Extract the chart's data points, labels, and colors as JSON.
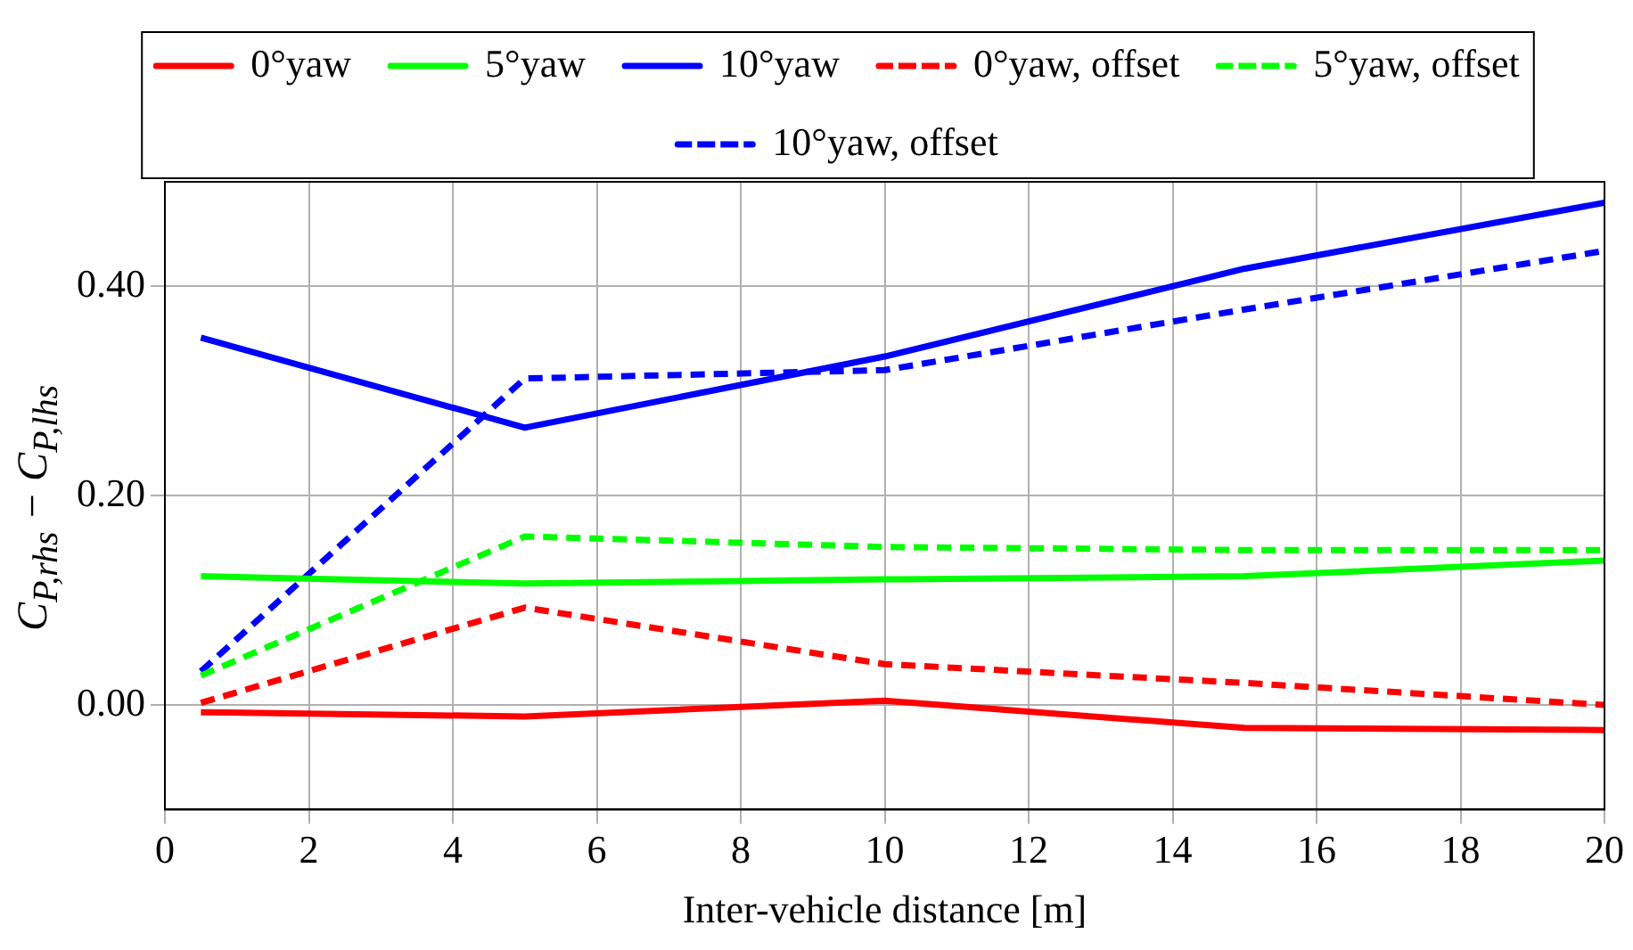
{
  "chart_data": {
    "type": "line",
    "xlabel": "Inter-vehicle distance [m]",
    "ylabel": "C$_{P,rhs}$ − C$_{P,lhs}$",
    "x": [
      0.5,
      5,
      10,
      15,
      20
    ],
    "xlim": [
      0,
      20
    ],
    "xticks": [
      0,
      2,
      4,
      6,
      8,
      10,
      12,
      14,
      16,
      18,
      20
    ],
    "ylim": [
      -0.1,
      0.5
    ],
    "yticks": [
      {
        "value": 0,
        "label": "0.00"
      },
      {
        "value": 0.2,
        "label": "0.20"
      },
      {
        "value": 0.4,
        "label": "0.40"
      }
    ],
    "grid": true,
    "legend": "top",
    "marker": "none",
    "series": [
      {
        "name": "0°yaw",
        "color": "#ff0000",
        "line_style": "solid",
        "values": [
          -0.007,
          -0.011,
          0.004,
          -0.022,
          -0.024
        ]
      },
      {
        "name": "5°yaw",
        "color": "#00ff00",
        "line_style": "solid",
        "values": [
          0.123,
          0.116,
          0.12,
          0.123,
          0.138
        ]
      },
      {
        "name": "10°yaw",
        "color": "#0000ff",
        "line_style": "solid",
        "values": [
          0.351,
          0.265,
          0.333,
          0.417,
          0.48
        ]
      },
      {
        "name": "0°yaw, offset",
        "color": "#ff0000",
        "line_style": "dashed",
        "values": [
          0.002,
          0.093,
          0.039,
          0.021,
          0.0
        ]
      },
      {
        "name": "5°yaw, offset",
        "color": "#00ff00",
        "line_style": "dashed",
        "values": [
          0.028,
          0.161,
          0.151,
          0.148,
          0.148
        ]
      },
      {
        "name": "10°yaw, offset",
        "color": "#0000ff",
        "line_style": "dashed",
        "values": [
          0.032,
          0.312,
          0.32,
          0.378,
          0.434
        ]
      }
    ]
  }
}
